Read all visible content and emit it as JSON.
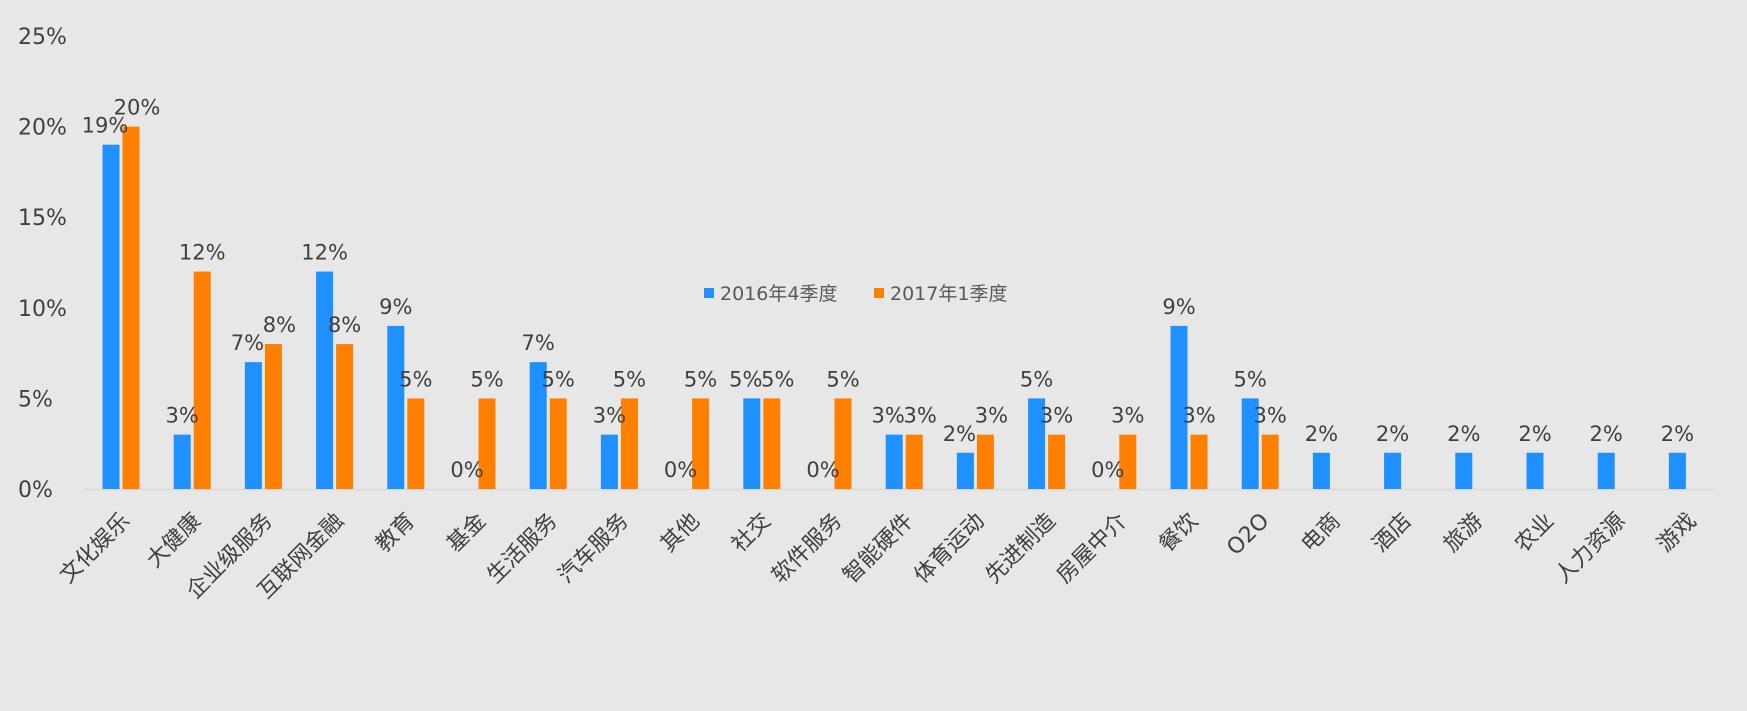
{
  "chart_data": {
    "type": "bar",
    "categories": [
      "文化娱乐",
      "大健康",
      "企业级服务",
      "互联网金融",
      "教育",
      "基金",
      "生活服务",
      "汽车服务",
      "其他",
      "社交",
      "软件服务",
      "智能硬件",
      "体育运动",
      "先进制造",
      "房屋中介",
      "餐饮",
      "O2O",
      "电商",
      "酒店",
      "旅游",
      "农业",
      "人力资源",
      "游戏"
    ],
    "series": [
      {
        "name": "2016年4季度",
        "color": "#1e90ff",
        "values": [
          19,
          3,
          7,
          12,
          9,
          0,
          7,
          3,
          null,
          5,
          0,
          3,
          2,
          5,
          0,
          9,
          5,
          2,
          2,
          2,
          2,
          2,
          2
        ],
        "labels": [
          "19%",
          "3%",
          "7%",
          "12%",
          "9%",
          "0%",
          "7%",
          "3%",
          "0%",
          "5%",
          "0%",
          "3%",
          "2%",
          "5%",
          "0%",
          "9%",
          "5%",
          "2%",
          "2%",
          "2%",
          "2%",
          "2%",
          "2%"
        ]
      },
      {
        "name": "2017年1季度",
        "color": "#ff8000",
        "values": [
          20,
          12,
          8,
          8,
          5,
          5,
          5,
          5,
          5,
          5,
          5,
          3,
          3,
          3,
          3,
          3,
          3,
          null,
          null,
          null,
          null,
          null,
          null
        ],
        "labels": [
          "20%",
          "12%",
          "8%",
          "8%",
          "5%",
          "5%",
          "5%",
          "5%",
          "5%",
          "5%",
          "5%",
          "3%",
          "3%",
          "3%",
          "3%",
          "3%",
          "3%",
          "",
          "",
          "",
          "",
          "",
          ""
        ]
      }
    ],
    "y_ticks": [
      0,
      5,
      10,
      15,
      20,
      25
    ],
    "y_tick_labels": [
      "0%",
      "5%",
      "10%",
      "15%",
      "20%",
      "25%"
    ],
    "ylim": [
      0,
      25
    ],
    "grid": false,
    "legend_position": "center",
    "title": "",
    "xlabel": "",
    "ylabel": "",
    "axis_color": "#d9d9d9",
    "text_color": "#404040"
  }
}
